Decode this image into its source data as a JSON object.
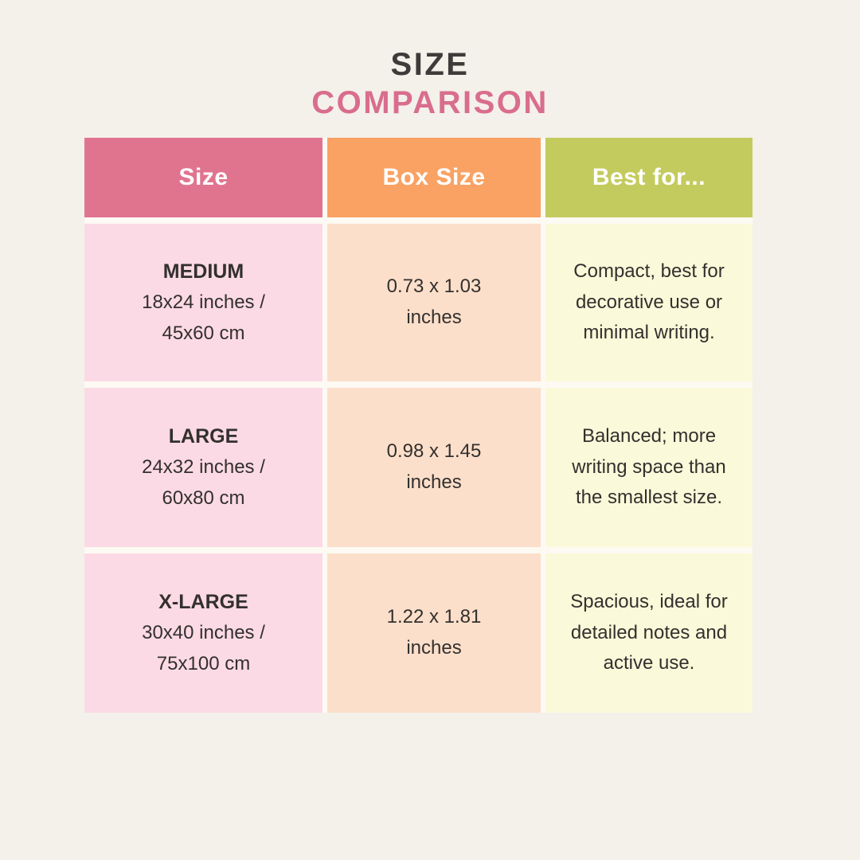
{
  "page": {
    "background_color": "#f4f0ea"
  },
  "title": {
    "line1": "SIZE",
    "line2": "COMPARISON",
    "line1_color": "#3f3b3a",
    "line2_color": "#d96d8e"
  },
  "table": {
    "header_text_color": "#ffffff",
    "body_text_color": "#33302e",
    "columns": [
      {
        "label": "Size",
        "header_color": "#e0748f",
        "cell_color": "#fbdae5"
      },
      {
        "label": "Box Size",
        "header_color": "#f9a263",
        "cell_color": "#fcdfca"
      },
      {
        "label": "Best for...",
        "header_color": "#c4cb5e",
        "cell_color": "#fafada"
      }
    ],
    "rows": [
      {
        "size_name": "MEDIUM",
        "size_dimensions_inches": "18x24 inches /",
        "size_dimensions_cm": "45x60 cm",
        "box_size": "0.73 x 1.03 inches",
        "best_for": "Compact, best for decorative use or minimal writing."
      },
      {
        "size_name": "LARGE",
        "size_dimensions_inches": "24x32 inches /",
        "size_dimensions_cm": "60x80 cm",
        "box_size": "0.98 x 1.45 inches",
        "best_for": "Balanced; more writing space than the smallest size."
      },
      {
        "size_name": "X-LARGE",
        "size_dimensions_inches": "30x40 inches /",
        "size_dimensions_cm": "75x100 cm",
        "box_size": "1.22 x 1.81 inches",
        "best_for": "Spacious, ideal for detailed notes and active use."
      }
    ]
  }
}
